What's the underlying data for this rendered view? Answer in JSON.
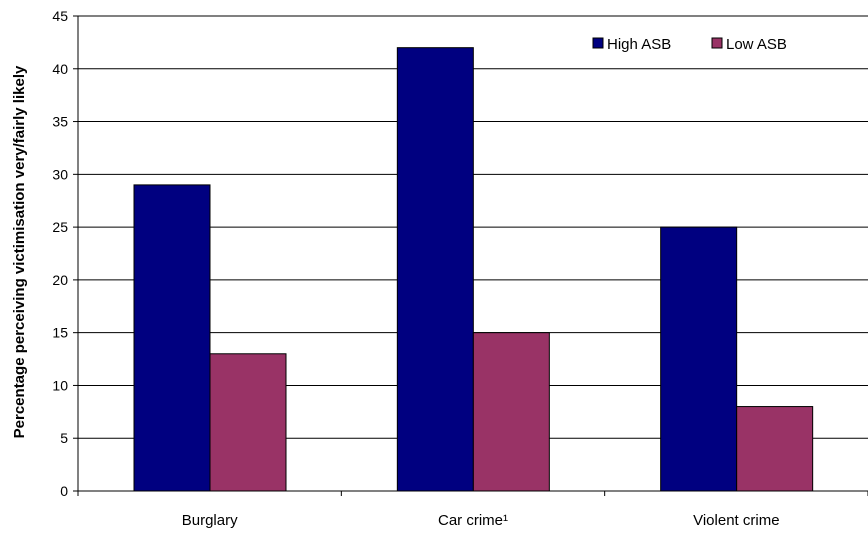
{
  "chart_data": {
    "type": "bar",
    "title": "",
    "xlabel": "",
    "ylabel": "Percentage perceiving victimisation very/fairly likely",
    "categories": [
      "Burglary",
      "Car crime¹",
      "Violent crime"
    ],
    "series": [
      {
        "name": "High ASB",
        "values": [
          29,
          42,
          25
        ],
        "color": "#000080"
      },
      {
        "name": "Low ASB",
        "values": [
          13,
          15,
          8
        ],
        "color": "#993366"
      }
    ],
    "ylim": [
      0,
      45
    ],
    "yticks": [
      0,
      5,
      10,
      15,
      20,
      25,
      30,
      35,
      40,
      45
    ],
    "grid": true,
    "legend_position": "top-right"
  }
}
